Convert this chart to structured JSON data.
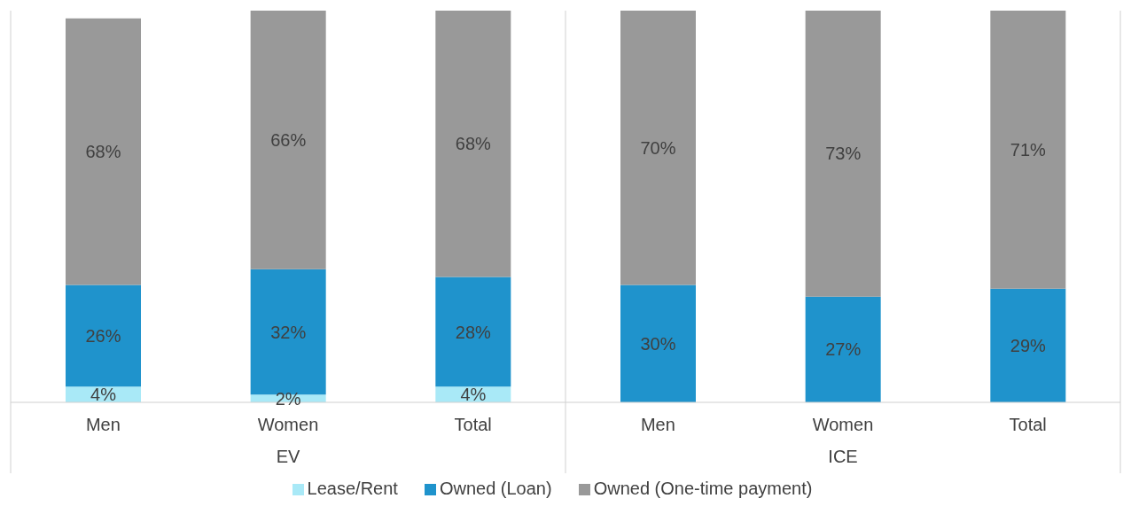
{
  "chart_data": {
    "type": "bar",
    "stacked": true,
    "categories": [
      "Men",
      "Women",
      "Total",
      "Men",
      "Women",
      "Total"
    ],
    "annotations": [
      "EV",
      "ICE"
    ],
    "series": [
      {
        "name": "Lease/Rent",
        "color": "#a9e9f7",
        "values": [
          4,
          2,
          4,
          null,
          null,
          null
        ],
        "value_labels": [
          "4%",
          "2%",
          "4%",
          null,
          null,
          null
        ]
      },
      {
        "name": "Owned (Loan)",
        "color": "#1f93cc",
        "values": [
          26,
          32,
          28,
          30,
          27,
          29
        ],
        "value_labels": [
          "26%",
          "32%",
          "28%",
          "30%",
          "27%",
          "29%"
        ]
      },
      {
        "name": "Owned (One-time payment)",
        "color": "#999999",
        "values": [
          68,
          66,
          68,
          70,
          73,
          71
        ],
        "value_labels": [
          "68%",
          "66%",
          "68%",
          "70%",
          "73%",
          "71%"
        ]
      }
    ],
    "legend": "bottom"
  }
}
